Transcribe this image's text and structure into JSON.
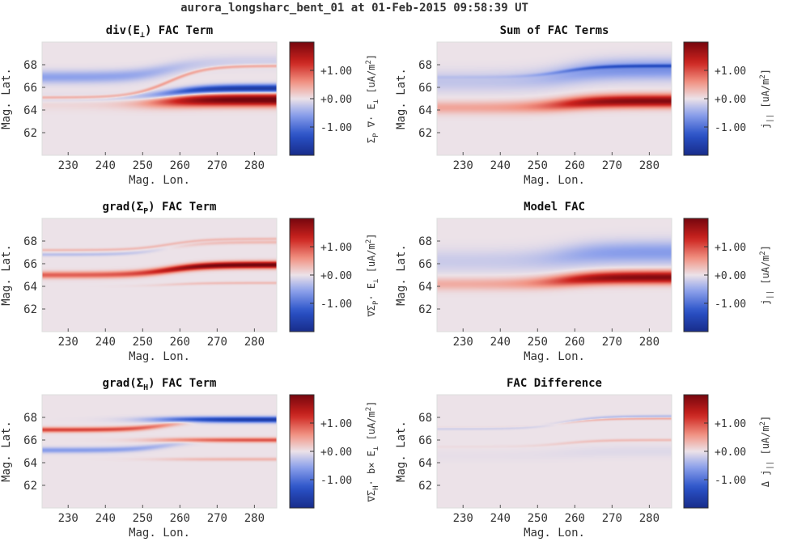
{
  "figure": {
    "title": "aurora_longsharc_bent_01 at 01-Feb-2015 09:58:39 UT"
  },
  "chart_data": [
    {
      "id": "div_e",
      "type": "heatmap",
      "title": "div(E⊥) FAC Term",
      "title_main": "div(E",
      "title_sub": "⊥",
      "title_tail": ") FAC Term",
      "xlabel": "Mag. Lon.",
      "ylabel": "Mag. Lat.",
      "xlim": [
        223,
        286
      ],
      "ylim": [
        60,
        70
      ],
      "xticks": [
        230,
        240,
        250,
        260,
        270,
        280
      ],
      "yticks": [
        62,
        64,
        66,
        68
      ],
      "colorbar": {
        "ticks": [
          "+1.00",
          "+0.00",
          "-1.00"
        ],
        "tick_values": [
          1,
          0,
          -1
        ],
        "range": [
          -2,
          2
        ],
        "label_parts": [
          [
            "Σ",
            ""
          ],
          [
            "P",
            "sub"
          ],
          [
            " ∇· E",
            ""
          ],
          [
            "⊥",
            "sub"
          ],
          [
            " [uA/m",
            ""
          ],
          [
            "2",
            "sup"
          ],
          [
            "]",
            ""
          ]
        ]
      },
      "features": [
        {
          "lat_west": 66.9,
          "lat_east": 68.3,
          "width": 0.55,
          "amp_west": -0.55,
          "amp_east": -0.15
        },
        {
          "lat_west": 65.0,
          "lat_east": 65.9,
          "width": 0.35,
          "amp_west": -0.2,
          "amp_east": -1.8
        },
        {
          "lat_west": 64.6,
          "lat_east": 64.9,
          "width": 0.55,
          "amp_west": 0.1,
          "amp_east": 2.1
        },
        {
          "lat_west": 65.1,
          "lat_east": 67.9,
          "width": 0.15,
          "amp_west": 0.5,
          "amp_east": 0.5
        }
      ]
    },
    {
      "id": "sum",
      "type": "heatmap",
      "title": "Sum of FAC Terms",
      "xlabel": "Mag. Lon.",
      "ylabel": "Mag. Lat.",
      "xlim": [
        223,
        286
      ],
      "ylim": [
        60,
        70
      ],
      "xticks": [
        230,
        240,
        250,
        260,
        270,
        280
      ],
      "yticks": [
        62,
        64,
        66,
        68
      ],
      "colorbar": {
        "ticks": [
          "+1.00",
          "+0.00",
          "-1.00"
        ],
        "tick_values": [
          1,
          0,
          -1
        ],
        "range": [
          -2,
          2
        ],
        "label_parts": [
          [
            "j",
            ""
          ],
          [
            "||",
            "sub"
          ],
          [
            " [uA/m",
            ""
          ],
          [
            "2",
            "sup"
          ],
          [
            "]",
            ""
          ]
        ]
      },
      "features": [
        {
          "lat_west": 66.5,
          "lat_east": 67.6,
          "width": 0.9,
          "amp_west": -0.25,
          "amp_east": -0.7
        },
        {
          "lat_west": 66.9,
          "lat_east": 67.9,
          "width": 0.15,
          "amp_west": -0.1,
          "amp_east": -0.8
        },
        {
          "lat_west": 64.2,
          "lat_east": 64.8,
          "width": 0.55,
          "amp_west": 0.45,
          "amp_east": 1.9
        }
      ]
    },
    {
      "id": "grad_sp",
      "type": "heatmap",
      "title": "grad(ΣP) FAC Term",
      "title_main": "grad(Σ",
      "title_sub": "P",
      "title_tail": ") FAC Term",
      "xlabel": "Mag. Lon.",
      "ylabel": "Mag. Lat.",
      "xlim": [
        223,
        286
      ],
      "ylim": [
        60,
        70
      ],
      "xticks": [
        230,
        240,
        250,
        260,
        270,
        280
      ],
      "yticks": [
        62,
        64,
        66,
        68
      ],
      "colorbar": {
        "ticks": [
          "+1.00",
          "+0.00",
          "-1.00"
        ],
        "tick_values": [
          1,
          0,
          -1
        ],
        "range": [
          -2,
          2
        ],
        "label_parts": [
          [
            "∇Σ",
            ""
          ],
          [
            "P",
            "sub"
          ],
          [
            "· E",
            ""
          ],
          [
            "⊥",
            "sub"
          ],
          [
            " [uA/m",
            ""
          ],
          [
            "2",
            "sup"
          ],
          [
            "]",
            ""
          ]
        ]
      },
      "features": [
        {
          "lat_west": 65.0,
          "lat_east": 65.9,
          "width": 0.3,
          "amp_west": 0.9,
          "amp_east": 2.1
        },
        {
          "lat_west": 66.8,
          "lat_east": 67.9,
          "width": 0.15,
          "amp_west": -0.3,
          "amp_east": 0.3
        },
        {
          "lat_west": 67.2,
          "lat_east": 68.2,
          "width": 0.12,
          "amp_west": 0.3,
          "amp_east": 0.3
        },
        {
          "lat_west": 64.0,
          "lat_east": 64.3,
          "width": 0.12,
          "amp_west": 0.0,
          "amp_east": 0.3
        }
      ]
    },
    {
      "id": "model",
      "type": "heatmap",
      "title": "Model FAC",
      "xlabel": "Mag. Lon.",
      "ylabel": "Mag. Lat.",
      "xlim": [
        223,
        286
      ],
      "ylim": [
        60,
        70
      ],
      "xticks": [
        230,
        240,
        250,
        260,
        270,
        280
      ],
      "yticks": [
        62,
        64,
        66,
        68
      ],
      "colorbar": {
        "ticks": [
          "+1.00",
          "+0.00",
          "-1.00"
        ],
        "tick_values": [
          1,
          0,
          -1
        ],
        "range": [
          -2,
          2
        ],
        "label_parts": [
          [
            "j",
            ""
          ],
          [
            "||",
            "sub"
          ],
          [
            " [uA/m",
            ""
          ],
          [
            "2",
            "sup"
          ],
          [
            "]",
            ""
          ]
        ]
      },
      "features": [
        {
          "lat_west": 66.2,
          "lat_east": 67.0,
          "width": 1.0,
          "amp_west": -0.2,
          "amp_east": -0.6
        },
        {
          "lat_west": 64.2,
          "lat_east": 64.8,
          "width": 0.55,
          "amp_west": 0.4,
          "amp_east": 1.9
        }
      ]
    },
    {
      "id": "grad_sh",
      "type": "heatmap",
      "title": "grad(ΣH) FAC Term",
      "title_main": "grad(Σ",
      "title_sub": "H",
      "title_tail": ") FAC Term",
      "xlabel": "Mag. Lon.",
      "ylabel": "Mag. Lat.",
      "xlim": [
        223,
        286
      ],
      "ylim": [
        60,
        70
      ],
      "xticks": [
        230,
        240,
        250,
        260,
        270,
        280
      ],
      "yticks": [
        62,
        64,
        66,
        68
      ],
      "colorbar": {
        "ticks": [
          "+1.00",
          "+0.00",
          "-1.00"
        ],
        "tick_values": [
          1,
          0,
          -1
        ],
        "range": [
          -2,
          2
        ],
        "label_parts": [
          [
            "∇Σ",
            ""
          ],
          [
            "H",
            "sub"
          ],
          [
            "· b× E",
            ""
          ],
          [
            "⊥",
            "sub"
          ],
          [
            " [uA/m",
            ""
          ],
          [
            "2",
            "sup"
          ],
          [
            "]",
            ""
          ]
        ]
      },
      "features": [
        {
          "lat_west": 66.9,
          "lat_east": 67.8,
          "width": 0.22,
          "amp_west": 1.1,
          "amp_east": 0.0
        },
        {
          "lat_west": 67.8,
          "lat_east": 67.8,
          "width": 0.25,
          "amp_west": 0.0,
          "amp_east": -1.7
        },
        {
          "lat_west": 65.1,
          "lat_east": 66.0,
          "width": 0.25,
          "amp_west": -0.6,
          "amp_east": 0.0
        },
        {
          "lat_west": 66.0,
          "lat_east": 66.0,
          "width": 0.2,
          "amp_west": 0.0,
          "amp_east": 1.0
        },
        {
          "lat_west": 64.3,
          "lat_east": 64.3,
          "width": 0.15,
          "amp_west": 0.0,
          "amp_east": 0.35
        }
      ]
    },
    {
      "id": "diff",
      "type": "heatmap",
      "title": "FAC Difference",
      "xlabel": "Mag. Lon.",
      "ylabel": "Mag. Lat.",
      "xlim": [
        223,
        286
      ],
      "ylim": [
        60,
        70
      ],
      "xticks": [
        230,
        240,
        250,
        260,
        270,
        280
      ],
      "yticks": [
        62,
        64,
        66,
        68
      ],
      "colorbar": {
        "ticks": [
          "+1.00",
          "+0.00",
          "-1.00"
        ],
        "tick_values": [
          1,
          0,
          -1
        ],
        "range": [
          -2,
          2
        ],
        "label_parts": [
          [
            "Δ j",
            ""
          ],
          [
            "||",
            "sub"
          ],
          [
            " [uA/m",
            ""
          ],
          [
            "2",
            "sup"
          ],
          [
            "]",
            ""
          ]
        ]
      },
      "features": [
        {
          "lat_west": 67.0,
          "lat_east": 68.1,
          "width": 0.12,
          "amp_west": -0.2,
          "amp_east": -0.35
        },
        {
          "lat_west": 67.1,
          "lat_east": 67.9,
          "width": 0.1,
          "amp_west": 0.1,
          "amp_east": 0.45
        },
        {
          "lat_west": 65.4,
          "lat_east": 66.0,
          "width": 0.12,
          "amp_west": 0.05,
          "amp_east": 0.3
        },
        {
          "lat_west": 64.6,
          "lat_east": 65.0,
          "width": 0.5,
          "amp_west": -0.03,
          "amp_east": -0.08
        }
      ]
    }
  ]
}
